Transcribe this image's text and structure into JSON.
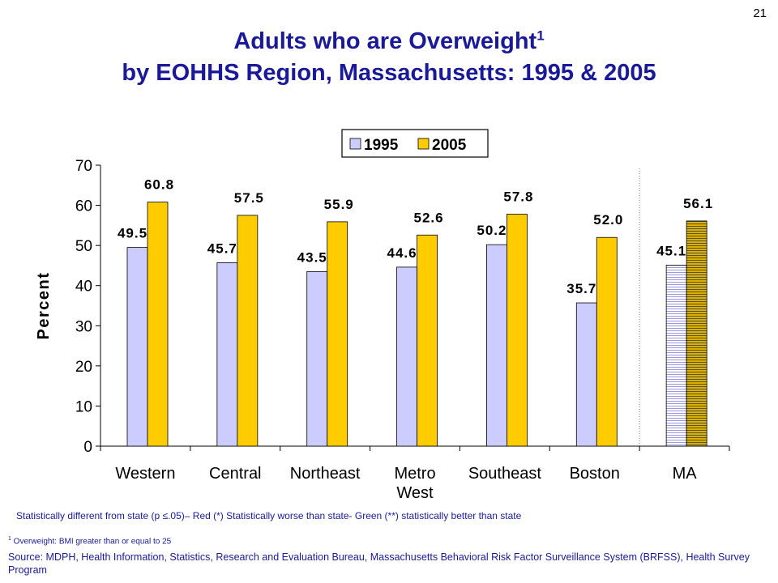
{
  "slide_number": "21",
  "title": {
    "line1": "Adults who are Overweight",
    "line1_sup": "1",
    "line2": "by EOHHS Region, Massachusetts: 1995 & 2005"
  },
  "chart_data": {
    "type": "bar",
    "title": "",
    "ylabel": "Percent",
    "xlabel": "",
    "ylim": [
      0,
      70
    ],
    "yticks": [
      0,
      10,
      20,
      30,
      40,
      50,
      60,
      70
    ],
    "grid": false,
    "legend_position": "top-center",
    "categories": [
      [
        "Western"
      ],
      [
        "Central"
      ],
      [
        "Northeast"
      ],
      [
        "Metro",
        "West"
      ],
      [
        "Southeast"
      ],
      [
        "Boston"
      ],
      [
        "MA"
      ]
    ],
    "series": [
      {
        "name": "1995",
        "color": "#ccccff",
        "values": [
          49.5,
          45.7,
          43.5,
          44.6,
          50.2,
          35.7,
          45.1
        ],
        "labels": [
          "49.5",
          "45.7",
          "43.5",
          "44.6",
          "50.2",
          "35.7",
          "45.1"
        ]
      },
      {
        "name": "2005",
        "color": "#ffcc00",
        "values": [
          60.8,
          57.5,
          55.9,
          52.6,
          57.8,
          52.0,
          56.1
        ],
        "labels": [
          "60.8",
          "57.5",
          "55.9",
          "52.6",
          "57.8",
          "52.0",
          "56.1"
        ]
      }
    ]
  },
  "notes": {
    "significance": "Statistically different from state (p ≤.05)– Red (*) Statistically worse than state- Green (**) statistically better than state",
    "footnote_sup": "1",
    "footnote": " Overweight: BMI greater than or equal to 25",
    "source": "Source: MDPH, Health Information, Statistics, Research and Evaluation Bureau, Massachusetts Behavioral Risk Factor Surveillance System (BRFSS), Health Survey Program"
  }
}
